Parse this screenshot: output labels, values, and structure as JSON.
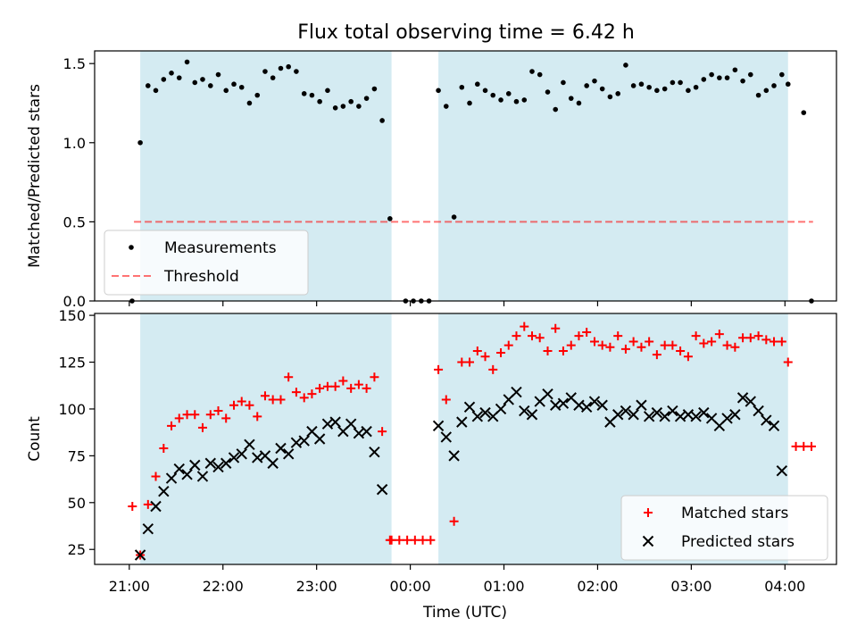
{
  "figure": {
    "title": "Flux total observing time = 6.42 h",
    "xlabel": "Time (UTC)",
    "xticks": [
      {
        "label": "21:00",
        "hour": 21
      },
      {
        "label": "22:00",
        "hour": 22
      },
      {
        "label": "23:00",
        "hour": 23
      },
      {
        "label": "00:00",
        "hour": 24
      },
      {
        "label": "01:00",
        "hour": 25
      },
      {
        "label": "02:00",
        "hour": 26
      },
      {
        "label": "03:00",
        "hour": 27
      },
      {
        "label": "04:00",
        "hour": 28
      }
    ],
    "shaded_intervals": [
      [
        21.117,
        23.8
      ],
      [
        24.3,
        28.033
      ]
    ],
    "shade_color": "#add8e6"
  },
  "chart_data": [
    {
      "type": "scatter",
      "ylabel": "Matched/Predicted stars",
      "ylim": [
        0,
        1.58
      ],
      "yticks": [
        {
          "label": "0.0",
          "value": 0
        },
        {
          "label": "0.5",
          "value": 0.5
        },
        {
          "label": "1.0",
          "value": 1.0
        },
        {
          "label": "1.5",
          "value": 1.5
        }
      ],
      "legend": {
        "position": "lower-left",
        "entries": [
          {
            "label": "Measurements",
            "marker": "dot",
            "color": "#000000"
          },
          {
            "label": "Threshold",
            "marker": "dashed-line",
            "color": "#ff0000"
          }
        ]
      },
      "threshold": {
        "value": 0.5,
        "x_range": [
          21.05,
          28.3
        ],
        "color": "#ff0000"
      },
      "series": [
        {
          "name": "Measurements",
          "color": "#000000",
          "x": [
            21.03,
            21.117,
            21.2,
            21.283,
            21.367,
            21.45,
            21.533,
            21.617,
            21.7,
            21.783,
            21.867,
            21.95,
            22.033,
            22.117,
            22.2,
            22.283,
            22.367,
            22.45,
            22.533,
            22.617,
            22.7,
            22.783,
            22.867,
            22.95,
            23.033,
            23.117,
            23.2,
            23.283,
            23.367,
            23.45,
            23.533,
            23.617,
            23.7,
            23.783,
            23.95,
            24.033,
            24.117,
            24.2,
            24.3,
            24.383,
            24.467,
            24.55,
            24.633,
            24.717,
            24.8,
            24.883,
            24.967,
            25.05,
            25.133,
            25.217,
            25.3,
            25.383,
            25.467,
            25.55,
            25.633,
            25.717,
            25.8,
            25.883,
            25.967,
            26.05,
            26.133,
            26.217,
            26.3,
            26.383,
            26.467,
            26.55,
            26.633,
            26.717,
            26.8,
            26.883,
            26.967,
            27.05,
            27.133,
            27.217,
            27.3,
            27.383,
            27.467,
            27.55,
            27.633,
            27.717,
            27.8,
            27.883,
            27.967,
            28.033,
            28.2,
            28.283
          ],
          "y": [
            0,
            1.0,
            1.36,
            1.33,
            1.4,
            1.44,
            1.41,
            1.51,
            1.38,
            1.4,
            1.36,
            1.43,
            1.33,
            1.37,
            1.35,
            1.25,
            1.3,
            1.45,
            1.41,
            1.47,
            1.48,
            1.45,
            1.31,
            1.3,
            1.26,
            1.33,
            1.22,
            1.23,
            1.26,
            1.23,
            1.28,
            1.34,
            1.14,
            0.52,
            0,
            0,
            0,
            0,
            1.33,
            1.23,
            0.53,
            1.35,
            1.25,
            1.37,
            1.33,
            1.3,
            1.27,
            1.31,
            1.26,
            1.27,
            1.45,
            1.43,
            1.32,
            1.21,
            1.38,
            1.28,
            1.25,
            1.36,
            1.39,
            1.34,
            1.29,
            1.31,
            1.49,
            1.36,
            1.37,
            1.35,
            1.33,
            1.34,
            1.38,
            1.38,
            1.33,
            1.35,
            1.4,
            1.43,
            1.41,
            1.41,
            1.46,
            1.39,
            1.43,
            1.3,
            1.33,
            1.36,
            1.43,
            1.37,
            1.19,
            0
          ]
        }
      ]
    },
    {
      "type": "scatter",
      "ylabel": "Count",
      "ylim": [
        17,
        151
      ],
      "yticks": [
        {
          "label": "25",
          "value": 25
        },
        {
          "label": "50",
          "value": 50
        },
        {
          "label": "75",
          "value": 75
        },
        {
          "label": "100",
          "value": 100
        },
        {
          "label": "125",
          "value": 125
        },
        {
          "label": "150",
          "value": 150
        }
      ],
      "legend": {
        "position": "lower-right",
        "entries": [
          {
            "label": "Matched stars",
            "marker": "plus",
            "color": "#ff0000"
          },
          {
            "label": "Predicted stars",
            "marker": "x",
            "color": "#000000"
          }
        ]
      },
      "series": [
        {
          "name": "Matched stars",
          "marker": "plus",
          "color": "#ff0000",
          "x": [
            21.033,
            21.117,
            21.2,
            21.283,
            21.367,
            21.45,
            21.533,
            21.617,
            21.7,
            21.783,
            21.867,
            21.95,
            22.033,
            22.117,
            22.2,
            22.283,
            22.367,
            22.45,
            22.533,
            22.617,
            22.7,
            22.783,
            22.867,
            22.95,
            23.033,
            23.117,
            23.2,
            23.283,
            23.367,
            23.45,
            23.533,
            23.617,
            23.7,
            23.783,
            23.8,
            23.883,
            23.967,
            24.05,
            24.133,
            24.217,
            24.3,
            24.383,
            24.467,
            24.55,
            24.633,
            24.717,
            24.8,
            24.883,
            24.967,
            25.05,
            25.133,
            25.217,
            25.3,
            25.383,
            25.467,
            25.55,
            25.633,
            25.717,
            25.8,
            25.883,
            25.967,
            26.05,
            26.133,
            26.217,
            26.3,
            26.383,
            26.467,
            26.55,
            26.633,
            26.717,
            26.8,
            26.883,
            26.967,
            27.05,
            27.133,
            27.217,
            27.3,
            27.383,
            27.467,
            27.55,
            27.633,
            27.717,
            27.8,
            27.883,
            27.967,
            28.033,
            28.117,
            28.2,
            28.283
          ],
          "y": [
            48,
            22,
            49,
            64,
            79,
            91,
            95,
            97,
            97,
            90,
            97,
            99,
            95,
            102,
            104,
            102,
            96,
            107,
            105,
            105,
            117,
            109,
            106,
            108,
            111,
            112,
            112,
            115,
            111,
            113,
            111,
            117,
            88,
            30,
            30,
            30,
            30,
            30,
            30,
            30,
            121,
            105,
            40,
            125,
            125,
            131,
            128,
            121,
            130,
            134,
            139,
            144,
            139,
            138,
            131,
            143,
            131,
            134,
            139,
            141,
            136,
            134,
            133,
            139,
            132,
            136,
            133,
            136,
            129,
            134,
            134,
            131,
            128,
            139,
            135,
            136,
            140,
            134,
            133,
            138,
            138,
            139,
            137,
            136,
            136,
            125,
            80,
            80,
            80
          ]
        },
        {
          "name": "Predicted stars",
          "marker": "x",
          "color": "#000000",
          "x": [
            21.117,
            21.2,
            21.283,
            21.367,
            21.45,
            21.533,
            21.617,
            21.7,
            21.783,
            21.867,
            21.95,
            22.033,
            22.117,
            22.2,
            22.283,
            22.367,
            22.45,
            22.533,
            22.617,
            22.7,
            22.783,
            22.867,
            22.95,
            23.033,
            23.117,
            23.2,
            23.283,
            23.367,
            23.45,
            23.533,
            23.617,
            23.7,
            23.783,
            24.3,
            24.383,
            24.467,
            24.55,
            24.633,
            24.717,
            24.8,
            24.883,
            24.967,
            25.05,
            25.133,
            25.217,
            25.3,
            25.383,
            25.467,
            25.55,
            25.633,
            25.717,
            25.8,
            25.883,
            25.967,
            26.05,
            26.133,
            26.217,
            26.3,
            26.383,
            26.467,
            26.55,
            26.633,
            26.717,
            26.8,
            26.883,
            26.967,
            27.05,
            27.133,
            27.217,
            27.3,
            27.383,
            27.467,
            27.55,
            27.633,
            27.717,
            27.8,
            27.883,
            27.967,
            28.033
          ],
          "y": [
            22,
            36,
            48,
            56,
            63,
            68,
            65,
            70,
            64,
            71,
            69,
            71,
            74,
            76,
            81,
            74,
            75,
            71,
            79,
            76,
            82,
            83,
            88,
            84,
            92,
            93,
            88,
            92,
            87,
            88,
            77,
            57,
            null,
            91,
            85,
            75,
            93,
            101,
            96,
            98,
            96,
            100,
            105,
            109,
            99,
            97,
            104,
            108,
            102,
            103,
            106,
            102,
            101,
            104,
            102,
            93,
            97,
            99,
            97,
            102,
            96,
            98,
            96,
            99,
            96,
            97,
            96,
            98,
            95,
            91,
            95,
            97,
            106,
            104,
            99,
            94,
            91,
            67,
            null
          ]
        }
      ]
    }
  ]
}
